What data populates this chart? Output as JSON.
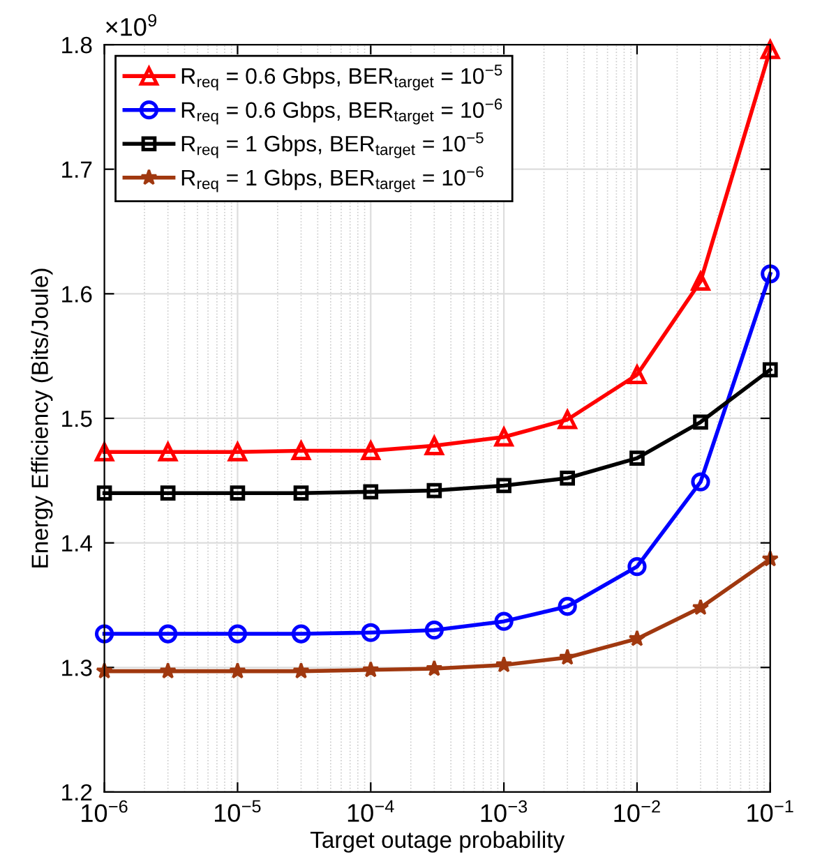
{
  "chart_data": {
    "type": "line",
    "xlabel": "Target outage probability",
    "ylabel": "Energy Efficiency (Bits/Joule)",
    "annotations": [
      "×10$^{9}$"
    ],
    "x": [
      1e-06,
      3e-06,
      1e-05,
      3e-05,
      0.0001,
      0.0003,
      0.001,
      0.003,
      0.01,
      0.03,
      0.1
    ],
    "series": [
      {
        "name": "R$_{req}$ = 0.6 Gbps, BER$_{target}$ = 10$^{−5}$",
        "color": "#ff0000",
        "marker": "triangle",
        "values": [
          1.473,
          1.473,
          1.473,
          1.474,
          1.474,
          1.478,
          1.485,
          1.499,
          1.535,
          1.61,
          1.796
        ]
      },
      {
        "name": "R$_{req}$ = 0.6 Gbps, BER$_{target}$ = 10$^{−6}$",
        "color": "#0000ff",
        "marker": "circle",
        "values": [
          1.327,
          1.327,
          1.327,
          1.327,
          1.328,
          1.33,
          1.337,
          1.349,
          1.381,
          1.449,
          1.616
        ]
      },
      {
        "name": "R$_{req}$ = 1 Gbps, BER$_{target}$ = 10$^{−5}$",
        "color": "#000000",
        "marker": "square",
        "values": [
          1.44,
          1.44,
          1.44,
          1.44,
          1.441,
          1.442,
          1.446,
          1.452,
          1.468,
          1.497,
          1.539
        ]
      },
      {
        "name": "R$_{req}$ = 1 Gbps, BER$_{target}$ = 10$^{−6}$",
        "color": "#a0380f",
        "marker": "star",
        "values": [
          1.297,
          1.297,
          1.297,
          1.297,
          1.298,
          1.299,
          1.302,
          1.308,
          1.323,
          1.348,
          1.387
        ]
      }
    ],
    "log": "x",
    "xlim": [
      1e-06,
      0.1
    ],
    "xticks": [
      {
        "value": 1e-06,
        "label": "10$^{−6}$"
      },
      {
        "value": 1e-05,
        "label": "10$^{−5}$"
      },
      {
        "value": 0.0001,
        "label": "10$^{−4}$"
      },
      {
        "value": 0.001,
        "label": "10$^{−3}$"
      },
      {
        "value": 0.01,
        "label": "10$^{−2}$"
      },
      {
        "value": 0.1,
        "label": "10$^{−1}$"
      }
    ],
    "ylim": [
      1.2,
      1.8
    ],
    "yticks": [
      1.2,
      1.3,
      1.4,
      1.5,
      1.6,
      1.7,
      1.8
    ],
    "grid": true,
    "legend": "top left",
    "line_style": "solid"
  }
}
